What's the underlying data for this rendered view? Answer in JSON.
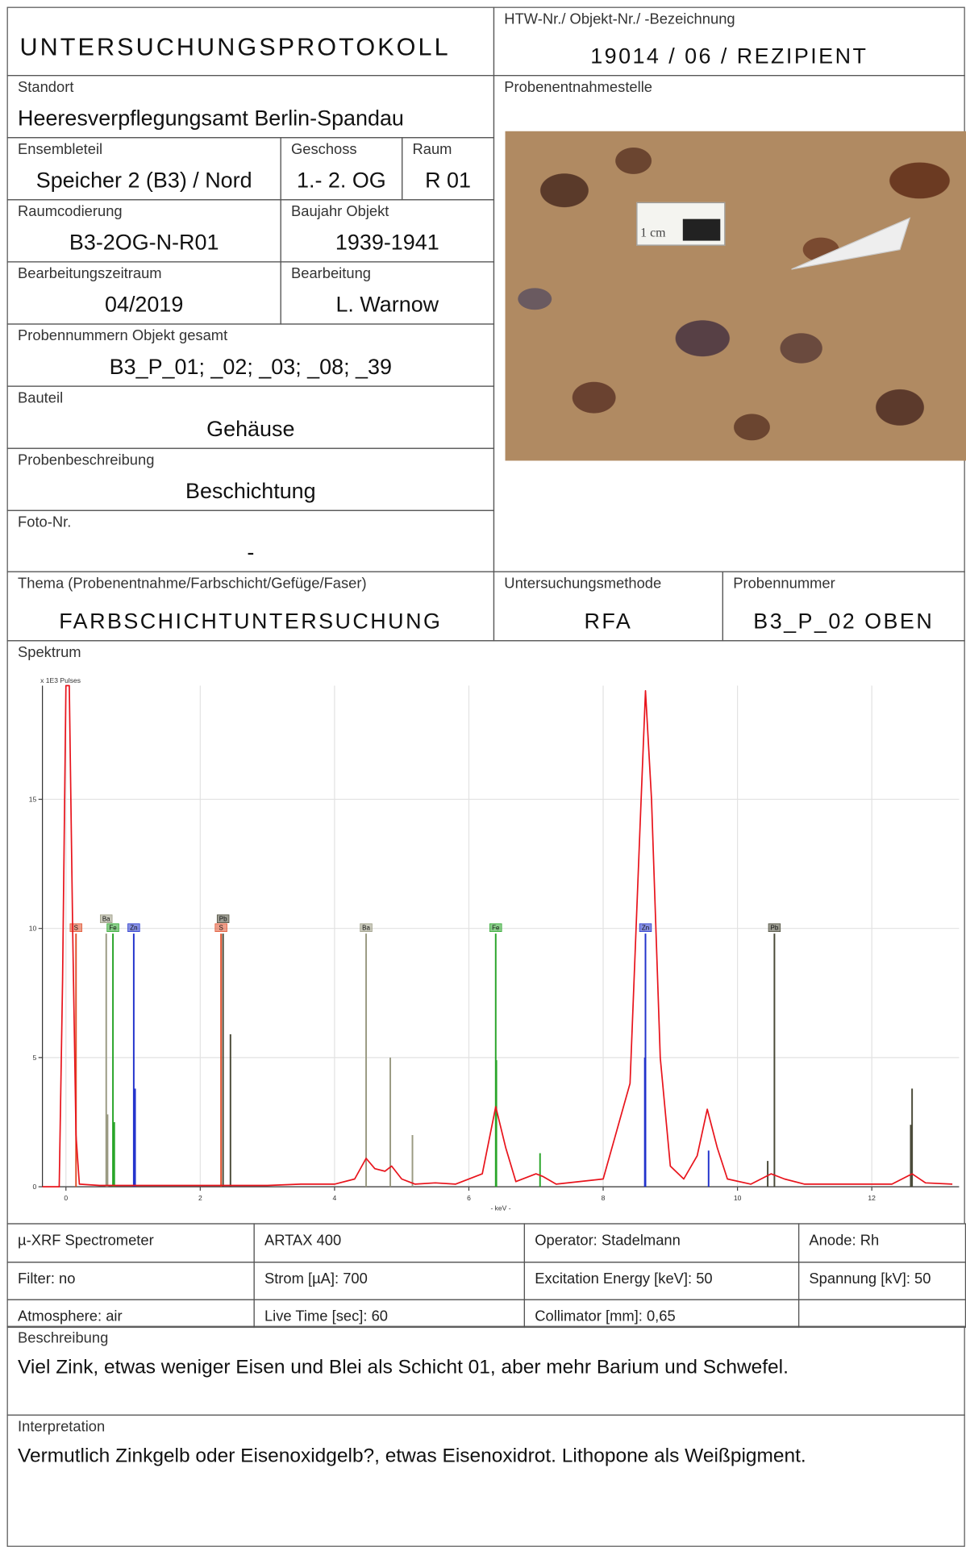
{
  "header": {
    "title": "UNTERSUCHUNGSPROTOKOLL",
    "object_label": "HTW-Nr./ Objekt-Nr./ -Bezeichnung",
    "object_value": "19014 / 06 / REZIPIENT"
  },
  "site": {
    "label": "Standort",
    "value": "Heeresverpflegungsamt Berlin-Spandau"
  },
  "ensemble": {
    "label": "Ensembleteil",
    "value": "Speicher 2 (B3) / Nord"
  },
  "floor": {
    "label": "Geschoss",
    "value": "1.- 2. OG"
  },
  "room": {
    "label": "Raum",
    "value": "R 01"
  },
  "room_code": {
    "label": "Raumcodierung",
    "value": "B3-2OG-N-R01"
  },
  "year_built": {
    "label": "Baujahr Objekt",
    "value": "1939-1941"
  },
  "period": {
    "label": "Bearbeitungszeitraum",
    "value": "04/2019"
  },
  "editor": {
    "label": "Bearbeitung",
    "value": "L. Warnow"
  },
  "sample_numbers": {
    "label": "Probennummern Objekt gesamt",
    "value": "B3_P_01; _02; _03; _08; _39"
  },
  "component": {
    "label": "Bauteil",
    "value": "Gehäuse"
  },
  "sample_description": {
    "label": "Probenbeschreibung",
    "value": "Beschichtung"
  },
  "photo_no": {
    "label": "Foto-Nr.",
    "value": "-"
  },
  "photo": {
    "label": "Probenentnahmestelle",
    "scale_text": "1 cm"
  },
  "topic": {
    "label": "Thema (Probenentnahme/Farbschicht/Gefüge/Faser)",
    "value": "FARBSCHICHTUNTERSUCHUNG"
  },
  "method": {
    "label": "Untersuchungsmethode",
    "value": "RFA"
  },
  "sample_number": {
    "label": "Probennummer",
    "value": "B3_P_02 OBEN"
  },
  "spectrum_label": "Spektrum",
  "instrument": {
    "rows": [
      [
        "µ-XRF Spectrometer",
        "ARTAX 400",
        "Operator: Stadelmann",
        "Anode: Rh"
      ],
      [
        "Filter: no",
        "Strom  [µA]: 700",
        "Excitation  Energy [keV]: 50",
        "Spannung [kV]: 50"
      ],
      [
        "Atmosphere: air",
        "Live Time  [sec]: 60",
        "Collimator [mm]: 0,65"
      ]
    ]
  },
  "description": {
    "label": "Beschreibung",
    "text": "Viel Zink, etwas weniger Eisen und Blei als Schicht 01, aber mehr Barium und Schwefel."
  },
  "interpretation": {
    "label": "Interpretation",
    "text": "Vermutlich Zinkgelb oder Eisenoxidgelb?, etwas Eisenoxidrot. Lithopone als Weißpigment."
  },
  "chart_data": {
    "type": "line",
    "y_label": "x 1E3 Pulses",
    "x_label": "- keV -",
    "xlim": [
      -0.35,
      13.3
    ],
    "ylim": [
      0,
      19.4
    ],
    "xticks": [
      0,
      2,
      4,
      6,
      8,
      10,
      12
    ],
    "yticks": [
      0,
      5,
      10,
      15
    ],
    "grid": true,
    "color": "#e8141c",
    "x": [
      -0.35,
      -0.1,
      -0.05,
      0,
      0.05,
      0.1,
      0.15,
      0.2,
      0.5,
      1.0,
      2.0,
      3.0,
      3.5,
      4.0,
      4.3,
      4.47,
      4.6,
      4.75,
      4.85,
      5.0,
      5.2,
      5.5,
      5.8,
      6.2,
      6.4,
      6.55,
      6.7,
      7.0,
      7.1,
      7.3,
      8.0,
      8.4,
      8.55,
      8.63,
      8.72,
      8.85,
      9.0,
      9.2,
      9.4,
      9.55,
      9.7,
      9.85,
      10.2,
      10.5,
      10.7,
      11.0,
      12.3,
      12.6,
      12.8,
      13.2
    ],
    "values": [
      0,
      0,
      8,
      19.4,
      19.4,
      10,
      2,
      0.1,
      0.05,
      0.05,
      0.05,
      0.05,
      0.1,
      0.1,
      0.3,
      1.1,
      0.7,
      0.6,
      0.8,
      0.3,
      0.1,
      0.15,
      0.1,
      0.5,
      3.1,
      1.5,
      0.2,
      0.5,
      0.4,
      0.1,
      0.3,
      4,
      14,
      19.2,
      15,
      5,
      0.8,
      0.3,
      1.2,
      3.0,
      1.5,
      0.3,
      0.1,
      0.5,
      0.3,
      0.1,
      0.1,
      0.5,
      0.15,
      0.1
    ],
    "element_lines": [
      {
        "label": "S",
        "x": 0.15,
        "value": 9.8,
        "color": "#e0502c"
      },
      {
        "label": "Fe",
        "x": 0.7,
        "value": 9.8,
        "color": "#2aa52a"
      },
      {
        "label": "Ba",
        "x": 0.6,
        "value": 9.8,
        "color": "#9a9a82"
      },
      {
        "label": "Zn",
        "x": 1.01,
        "value": 9.8,
        "color": "#2233cc"
      },
      {
        "label": "S",
        "x": 2.31,
        "value": 9.8,
        "color": "#e0502c"
      },
      {
        "label": "Pb",
        "x": 2.34,
        "value": 9.8,
        "color": "#4a4a38"
      },
      {
        "label": "Ba",
        "x": 4.47,
        "value": 9.8,
        "color": "#9a9a82"
      },
      {
        "label": "Fe",
        "x": 6.4,
        "value": 9.8,
        "color": "#2aa52a"
      },
      {
        "label": "Zn",
        "x": 8.63,
        "value": 9.8,
        "color": "#2233cc"
      },
      {
        "label": "Pb",
        "x": 10.55,
        "value": 9.8,
        "color": "#4a4a38"
      },
      {
        "x": 0.62,
        "value": 2.8,
        "color": "#9a9a82"
      },
      {
        "x": 0.72,
        "value": 2.5,
        "color": "#2aa52a"
      },
      {
        "x": 1.03,
        "value": 3.8,
        "color": "#2233cc"
      },
      {
        "x": 2.45,
        "value": 5.9,
        "color": "#4a4a38"
      },
      {
        "x": 4.83,
        "value": 5.0,
        "color": "#9a9a82"
      },
      {
        "x": 5.16,
        "value": 2.0,
        "color": "#9a9a82"
      },
      {
        "x": 6.41,
        "value": 4.9,
        "color": "#2aa52a"
      },
      {
        "x": 7.06,
        "value": 1.3,
        "color": "#2aa52a"
      },
      {
        "x": 8.62,
        "value": 5.0,
        "color": "#2233cc"
      },
      {
        "x": 9.57,
        "value": 1.4,
        "color": "#2233cc"
      },
      {
        "x": 10.45,
        "value": 1.0,
        "color": "#4a4a38"
      },
      {
        "x": 12.6,
        "value": 3.8,
        "color": "#4a4a38"
      },
      {
        "x": 12.58,
        "value": 2.4,
        "color": "#4a4a38"
      }
    ]
  }
}
